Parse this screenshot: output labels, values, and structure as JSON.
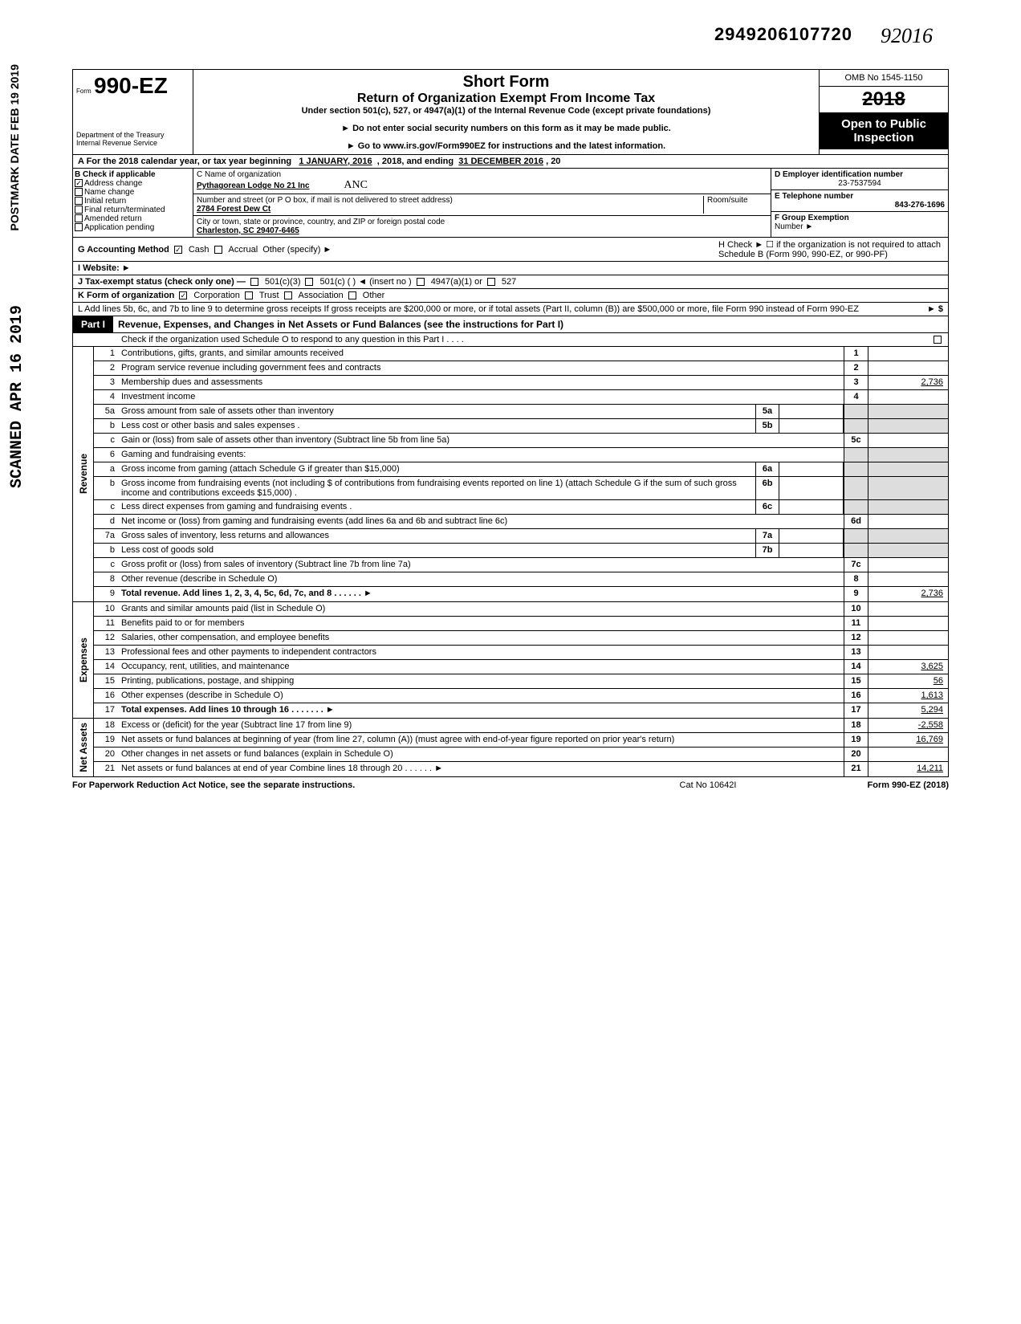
{
  "dln": "2949206107720",
  "hand_year": "92016",
  "stamp1": "POSTMARK DATE  FEB 19 2019",
  "stamp2": "SCANNED APR 16 2019",
  "form": {
    "prefix": "Form",
    "number": "990-EZ",
    "dept": "Department of the Treasury\nInternal Revenue Service",
    "title": "Short Form",
    "subtitle": "Return of Organization Exempt From Income Tax",
    "under": "Under section 501(c), 527, or 4947(a)(1) of the Internal Revenue Code (except private foundations)",
    "note1": "► Do not enter social security numbers on this form as it may be made public.",
    "note2": "► Go to www.irs.gov/Form990EZ for instructions and the latest information.",
    "omb": "OMB No 1545-1150",
    "year": "2018",
    "open": "Open to Public Inspection"
  },
  "line_a": {
    "prefix": "A For the 2018 calendar year, or tax year beginning",
    "begin": "1 JANUARY, 2016",
    "mid": ", 2018, and ending",
    "end": "31 DECEMBER 2016",
    "suffix": ", 20"
  },
  "b": {
    "header": "B Check if applicable",
    "items": [
      {
        "label": "Address change",
        "checked": true
      },
      {
        "label": "Name change",
        "checked": false
      },
      {
        "label": "Initial return",
        "checked": false
      },
      {
        "label": "Final return/terminated",
        "checked": false
      },
      {
        "label": "Amended return",
        "checked": false
      },
      {
        "label": "Application pending",
        "checked": false
      }
    ]
  },
  "c": {
    "lbl_name": "C  Name of organization",
    "name": "Pythagorean Lodge No 21 Inc",
    "hand_note": "ANC",
    "lbl_street": "Number and street (or P O  box, if mail is not delivered to street address)",
    "room_lbl": "Room/suite",
    "street": "2784 Forest Dew Ct",
    "lbl_city": "City or town, state or province, country, and ZIP or foreign postal code",
    "city": "Charleston, SC 29407-6465"
  },
  "d": {
    "lbl": "D Employer identification number",
    "val": "23-7537594"
  },
  "e": {
    "lbl": "E Telephone number",
    "val": "843-276-1696"
  },
  "f": {
    "lbl": "F Group Exemption",
    "lbl2": "Number ►"
  },
  "g": {
    "lbl": "G Accounting Method",
    "cash": "Cash",
    "accrual": "Accrual",
    "other": "Other (specify) ►"
  },
  "h": {
    "txt": "H Check ► ☐ if the organization is not required to attach Schedule B (Form 990, 990-EZ, or 990-PF)"
  },
  "i": {
    "lbl": "I  Website: ►"
  },
  "j": {
    "lbl": "J Tax-exempt status (check only one) —",
    "o1": "501(c)(3)",
    "o2": "501(c) (        ) ◄ (insert no )",
    "o3": "4947(a)(1) or",
    "o4": "527"
  },
  "k": {
    "lbl": "K Form of organization",
    "o1": "Corporation",
    "o2": "Trust",
    "o3": "Association",
    "o4": "Other"
  },
  "l": {
    "txt": "L Add lines 5b, 6c, and 7b to line 9 to determine gross receipts  If gross receipts are $200,000 or more, or if total assets (Part II, column (B)) are $500,000 or more, file Form 990 instead of Form 990-EZ",
    "arrow": "► $"
  },
  "part1": {
    "label": "Part I",
    "title": "Revenue, Expenses, and Changes in Net Assets or Fund Balances (see the instructions for Part I)",
    "sub": "Check if the organization used Schedule O to respond to any question in this Part I   .    .    .    ."
  },
  "sections": {
    "revenue": "Revenue",
    "expenses": "Expenses",
    "netassets": "Net Assets"
  },
  "lines": {
    "1": {
      "n": "1",
      "t": "Contributions, gifts, grants, and similar amounts received",
      "on": "1",
      "ov": ""
    },
    "2": {
      "n": "2",
      "t": "Program service revenue including government fees and contracts",
      "on": "2",
      "ov": ""
    },
    "3": {
      "n": "3",
      "t": "Membership dues and assessments",
      "on": "3",
      "ov": "2,736"
    },
    "4": {
      "n": "4",
      "t": "Investment income",
      "on": "4",
      "ov": ""
    },
    "5a": {
      "n": "5a",
      "t": "Gross amount from sale of assets other than inventory",
      "in": "5a",
      "iv": ""
    },
    "5b": {
      "n": "b",
      "t": "Less  cost or other basis and sales expenses  .",
      "in": "5b",
      "iv": ""
    },
    "5c": {
      "n": "c",
      "t": "Gain or (loss) from sale of assets other than inventory (Subtract line 5b from line 5a)",
      "on": "5c",
      "ov": ""
    },
    "6": {
      "n": "6",
      "t": "Gaming and fundraising events:"
    },
    "6a": {
      "n": "a",
      "t": "Gross income from gaming (attach Schedule G if greater than $15,000)",
      "in": "6a",
      "iv": ""
    },
    "6b": {
      "n": "b",
      "t": "Gross income from fundraising events (not including  $                      of contributions from fundraising events reported on line 1) (attach Schedule G if the sum of such gross income and contributions exceeds $15,000)  .",
      "in": "6b",
      "iv": ""
    },
    "6c": {
      "n": "c",
      "t": "Less  direct expenses from gaming and fundraising events   .",
      "in": "6c",
      "iv": ""
    },
    "6d": {
      "n": "d",
      "t": "Net income or (loss) from gaming and fundraising events (add lines 6a and 6b and subtract line 6c)",
      "on": "6d",
      "ov": ""
    },
    "7a": {
      "n": "7a",
      "t": "Gross sales of inventory, less returns and allowances",
      "in": "7a",
      "iv": ""
    },
    "7b": {
      "n": "b",
      "t": "Less  cost of goods sold",
      "in": "7b",
      "iv": ""
    },
    "7c": {
      "n": "c",
      "t": "Gross profit or (loss) from sales of inventory (Subtract line 7b from line 7a)",
      "on": "7c",
      "ov": ""
    },
    "8": {
      "n": "8",
      "t": "Other revenue (describe in Schedule O)",
      "on": "8",
      "ov": ""
    },
    "9": {
      "n": "9",
      "t": "Total revenue. Add lines 1, 2, 3, 4, 5c, 6d, 7c, and 8",
      "on": "9",
      "ov": "2,736",
      "bold": true,
      "arrow": true
    },
    "10": {
      "n": "10",
      "t": "Grants and similar amounts paid (list in Schedule O)",
      "on": "10",
      "ov": ""
    },
    "11": {
      "n": "11",
      "t": "Benefits paid to or for members",
      "on": "11",
      "ov": ""
    },
    "12": {
      "n": "12",
      "t": "Salaries, other compensation, and employee benefits",
      "on": "12",
      "ov": ""
    },
    "13": {
      "n": "13",
      "t": "Professional fees and other payments to independent contractors",
      "on": "13",
      "ov": ""
    },
    "14": {
      "n": "14",
      "t": "Occupancy, rent, utilities, and maintenance",
      "on": "14",
      "ov": "3,625"
    },
    "15": {
      "n": "15",
      "t": "Printing, publications, postage, and shipping",
      "on": "15",
      "ov": "56"
    },
    "16": {
      "n": "16",
      "t": "Other expenses (describe in Schedule O)",
      "on": "16",
      "ov": "1,613"
    },
    "17": {
      "n": "17",
      "t": "Total expenses. Add lines 10 through 16  .",
      "on": "17",
      "ov": "5,294",
      "bold": true,
      "arrow": true
    },
    "18": {
      "n": "18",
      "t": "Excess or (deficit) for the year (Subtract line 17 from line 9)",
      "on": "18",
      "ov": "-2,558"
    },
    "19": {
      "n": "19",
      "t": "Net assets or fund balances at beginning of year (from line 27, column (A)) (must agree with end-of-year figure reported on prior year's return)",
      "on": "19",
      "ov": "16,769"
    },
    "20": {
      "n": "20",
      "t": "Other changes in net assets or fund balances (explain in Schedule O)",
      "on": "20",
      "ov": ""
    },
    "21": {
      "n": "21",
      "t": "Net assets or fund balances at end of year  Combine lines 18 through 20",
      "on": "21",
      "ov": "14,211",
      "arrow": true
    }
  },
  "footer": {
    "left": "For Paperwork Reduction Act Notice, see the separate instructions.",
    "center": "Cat  No  10642I",
    "right": "Form 990-EZ (2018)"
  }
}
